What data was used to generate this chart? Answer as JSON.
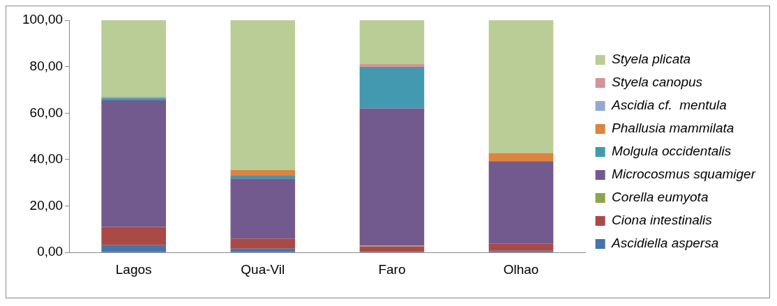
{
  "chart_data": {
    "type": "bar",
    "stacked": true,
    "categories": [
      "Lagos",
      "Qua-Vil",
      "Faro",
      "Olhao"
    ],
    "series": [
      {
        "name": "Ascidiella aspersa",
        "color": "#4674aa",
        "values": [
          3.1,
          1.6,
          0.3,
          0.7
        ]
      },
      {
        "name": "Ciona intestinalis",
        "color": "#aa4a47",
        "values": [
          7.9,
          4.4,
          2.3,
          3.0
        ]
      },
      {
        "name": "Corella eumyota",
        "color": "#8aa64e",
        "values": [
          0,
          0,
          0.4,
          0
        ]
      },
      {
        "name": "Microcosmus squamiger",
        "color": "#725a8f",
        "values": [
          54.5,
          25.8,
          59.0,
          35.6
        ]
      },
      {
        "name": "Molgula occidentalis",
        "color": "#4299b0",
        "values": [
          0.9,
          1.5,
          17.9,
          0
        ]
      },
      {
        "name": "Phallusia mammilata",
        "color": "#dd843f",
        "values": [
          0,
          2.2,
          0,
          3.5
        ]
      },
      {
        "name": "Ascidia cf.  mentula",
        "color": "#95a9d0",
        "values": [
          0.6,
          0,
          0,
          0
        ]
      },
      {
        "name": "Styela canopus",
        "color": "#d49497",
        "values": [
          0,
          0,
          1.2,
          0
        ]
      },
      {
        "name": "Styela plicata",
        "color": "#bbcd96",
        "values": [
          33.0,
          64.5,
          18.9,
          57.2
        ]
      }
    ],
    "ylim": [
      0,
      100
    ],
    "yticks": [
      {
        "value": 0,
        "label": "0,00"
      },
      {
        "value": 20,
        "label": "20,00"
      },
      {
        "value": 40,
        "label": "40,00"
      },
      {
        "value": 60,
        "label": "60,00"
      },
      {
        "value": 80,
        "label": "80,00"
      },
      {
        "value": 100,
        "label": "100,00"
      }
    ],
    "grid": false,
    "legend": "right"
  }
}
